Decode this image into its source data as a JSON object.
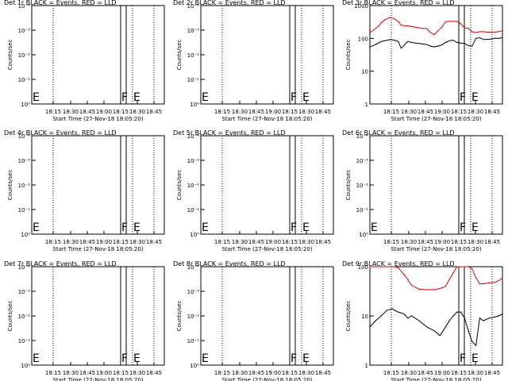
{
  "page": {
    "background": "#ffffff",
    "ink": "#000000",
    "red": "#e00000"
  },
  "chart_data": [
    {
      "type": "line",
      "title": "Det 1r BLACK = Events, RED = LLD",
      "xlabel": "Start Time (27-Nov-18 18:05:20)",
      "ylabel": "Counts/sec",
      "scale": "log",
      "xtick_labels": [
        "18:15",
        "18:30",
        "18:45",
        "19:00",
        "18:15",
        "18:30",
        "18:45"
      ],
      "ytick_labels": [
        "10⁻⁴",
        "10⁻³",
        "10⁻²",
        "10⁻¹",
        "10⁰"
      ],
      "markers": [
        "F",
        "E"
      ],
      "series": []
    },
    {
      "type": "line",
      "title": "Det 2r BLACK = Events, RED = LLD",
      "xlabel": "Start Time (27-Nov-18 18:05:20)",
      "ylabel": "Counts/sec",
      "scale": "log",
      "xtick_labels": [
        "18:15",
        "18:30",
        "18:45",
        "19:00",
        "18:15",
        "18:30",
        "18:45"
      ],
      "ytick_labels": [
        "10⁻⁴",
        "10⁻³",
        "10⁻²",
        "10⁻¹",
        "10⁰"
      ],
      "markers": [
        "F",
        "E"
      ],
      "series": []
    },
    {
      "type": "line",
      "title": "Det 3r BLACK = Events, RED = LLD",
      "xlabel": "Start Time (27-Nov-18 18:05:20)",
      "ylabel": "Counts/sec",
      "scale": "log",
      "xtick_labels": [
        "18:15",
        "18:30",
        "18:45",
        "19:00",
        "18:15",
        "18:30",
        "18:45"
      ],
      "ytick_labels": [
        "1000",
        "100",
        "10",
        "1"
      ],
      "markers": [
        "F",
        "E"
      ],
      "series": [
        {
          "color": "#e00000",
          "x": [
            0,
            0.3,
            0.5,
            0.6,
            0.8,
            1.0,
            1.1,
            1.3,
            1.5,
            1.65,
            2.0,
            2.2,
            2.4,
            2.6,
            2.8,
            3.0,
            3.2,
            3.4,
            3.6,
            3.8,
            4.0,
            4.2,
            4.4,
            4.6,
            4.8,
            5.0,
            5.2,
            5.4,
            5.6,
            5.8,
            6.0,
            6.2,
            6.4,
            6.6,
            6.8,
            7.0
          ],
          "y": [
            150,
            200,
            250,
            300,
            370,
            420,
            430,
            390,
            330,
            250,
            240,
            230,
            220,
            210,
            200,
            200,
            150,
            130,
            170,
            220,
            320,
            330,
            330,
            330,
            280,
            210,
            200,
            160,
            150,
            160,
            160,
            155,
            155,
            155,
            160,
            170
          ]
        },
        {
          "color": "#000000",
          "x": [
            0,
            0.3,
            0.5,
            0.6,
            0.8,
            1.0,
            1.1,
            1.3,
            1.5,
            1.65,
            2.0,
            2.2,
            2.4,
            2.6,
            2.8,
            3.0,
            3.2,
            3.4,
            3.6,
            3.8,
            4.0,
            4.2,
            4.4,
            4.6,
            4.8,
            5.0,
            5.2,
            5.4,
            5.6,
            5.8,
            6.0,
            6.2,
            6.4,
            6.6,
            6.8,
            7.0
          ],
          "y": [
            55,
            65,
            75,
            80,
            85,
            90,
            92,
            88,
            80,
            50,
            80,
            75,
            72,
            70,
            67,
            65,
            58,
            55,
            58,
            63,
            75,
            85,
            88,
            75,
            72,
            70,
            60,
            58,
            100,
            105,
            92,
            93,
            96,
            100,
            100,
            105
          ]
        }
      ]
    },
    {
      "type": "line",
      "title": "Det 4r BLACK = Events, RED = LLD",
      "xlabel": "Start Time (27-Nov-18 18:05:20)",
      "ylabel": "Counts/sec",
      "scale": "log",
      "xtick_labels": [
        "18:15",
        "18:30",
        "18:45",
        "19:00",
        "18:15",
        "18:30",
        "18:45"
      ],
      "ytick_labels": [
        "10⁻⁴",
        "10⁻³",
        "10⁻²",
        "10⁻¹",
        "10⁰"
      ],
      "markers": [
        "F",
        "E"
      ],
      "series": []
    },
    {
      "type": "line",
      "title": "Det 5r BLACK = Events, RED = LLD",
      "xlabel": "Start Time (27-Nov-18 18:05:20)",
      "ylabel": "Counts/sec",
      "scale": "log",
      "xtick_labels": [
        "18:15",
        "18:30",
        "18:45",
        "19:00",
        "18:15",
        "18:30",
        "18:45"
      ],
      "ytick_labels": [
        "10⁻⁴",
        "10⁻³",
        "10⁻²",
        "10⁻¹",
        "10⁰"
      ],
      "markers": [
        "F",
        "E"
      ],
      "series": []
    },
    {
      "type": "line",
      "title": "Det 6r BLACK = Events, RED = LLD",
      "xlabel": "Start Time (27-Nov-18 18:05:20)",
      "ylabel": "Counts/sec",
      "scale": "log",
      "xtick_labels": [
        "18:15",
        "18:30",
        "18:45",
        "19:00",
        "18:15",
        "18:30",
        "18:45"
      ],
      "ytick_labels": [
        "10⁻⁴",
        "10⁻³",
        "10⁻²",
        "10⁻¹",
        "10⁰"
      ],
      "markers": [
        "F",
        "E"
      ],
      "series": []
    },
    {
      "type": "line",
      "title": "Det 7r BLACK = Events, RED = LLD",
      "xlabel": "Start Time (27-Nov-18 18:05:20)",
      "ylabel": "Counts/sec",
      "scale": "log",
      "xtick_labels": [
        "18:15",
        "18:30",
        "18:45",
        "19:00",
        "18:15",
        "18:30",
        "18:45"
      ],
      "ytick_labels": [
        "10⁻⁴",
        "10⁻³",
        "10⁻²",
        "10⁻¹",
        "10⁰"
      ],
      "markers": [
        "F",
        "E"
      ],
      "series": []
    },
    {
      "type": "line",
      "title": "Det 8r BLACK = Events, RED = LLD",
      "xlabel": "Start Time (27-Nov-18 18:05:20)",
      "ylabel": "Counts/sec",
      "scale": "log",
      "xtick_labels": [
        "18:15",
        "18:30",
        "18:45",
        "19:00",
        "18:15",
        "18:30",
        "18:45"
      ],
      "ytick_labels": [
        "10⁻⁴",
        "10⁻³",
        "10⁻²",
        "10⁻¹",
        "10⁰"
      ],
      "markers": [
        "F",
        "E"
      ],
      "series": []
    },
    {
      "type": "line",
      "title": "Det 9r BLACK = Events, RED = LLD",
      "xlabel": "Start Time (27-Nov-18 18:05:20)",
      "ylabel": "Counts/sec",
      "scale": "log",
      "xtick_labels": [
        "18:15",
        "18:30",
        "18:45",
        "19:00",
        "18:15",
        "18:30",
        "18:45"
      ],
      "ytick_labels": [
        "100",
        "10",
        "1"
      ],
      "markers": [
        "F",
        "E"
      ],
      "series": [
        {
          "color": "#e00000",
          "x": [
            0,
            0.3,
            0.6,
            0.9,
            1.2,
            1.3,
            1.5,
            1.8,
            2.0,
            2.2,
            2.6,
            3.0,
            3.4,
            3.7,
            4.0,
            4.2,
            4.4,
            4.6,
            4.8,
            5.0,
            5.2,
            5.4,
            5.6,
            5.8,
            6.0,
            6.3,
            6.6,
            6.8,
            7.0
          ],
          "y": [
            110,
            140,
            150,
            140,
            120,
            105,
            95,
            70,
            55,
            42,
            35,
            34,
            34,
            36,
            40,
            55,
            75,
            110,
            140,
            120,
            100,
            90,
            60,
            45,
            45,
            47,
            48,
            52,
            60
          ]
        },
        {
          "color": "#000000",
          "x": [
            0,
            0.3,
            0.6,
            0.9,
            1.2,
            1.3,
            1.5,
            1.8,
            2.0,
            2.2,
            2.6,
            3.0,
            3.4,
            3.7,
            4.0,
            4.2,
            4.4,
            4.6,
            4.8,
            5.0,
            5.2,
            5.4,
            5.6,
            5.8,
            6.0,
            6.3,
            6.6,
            6.8,
            7.0
          ],
          "y": [
            6,
            8,
            10,
            13,
            14,
            13,
            12,
            11,
            9,
            10,
            8,
            6,
            5,
            4,
            6,
            8,
            10,
            12,
            12,
            9,
            5,
            3,
            2.5,
            9,
            8,
            9,
            9.5,
            10,
            11
          ]
        }
      ]
    }
  ]
}
